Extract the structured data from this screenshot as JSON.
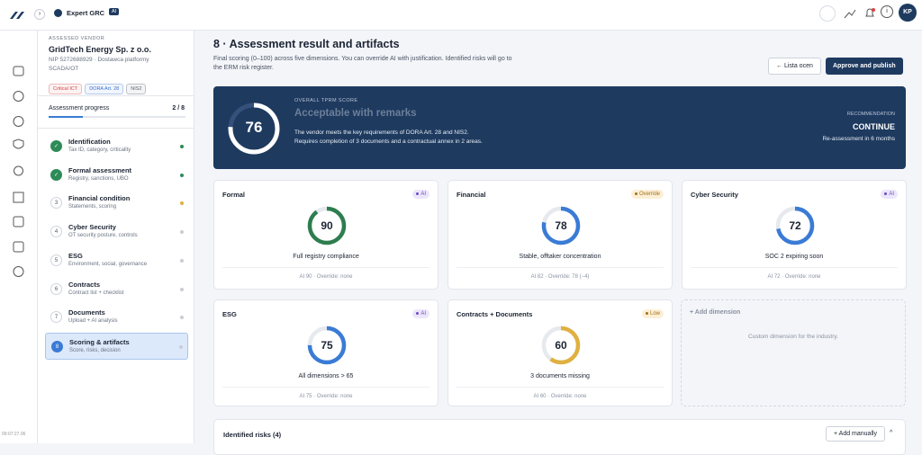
{
  "topbar": {
    "product": "Expert GRC",
    "badge": "AI",
    "avatar": "KP"
  },
  "rail": {
    "clock": "09:07:27.06"
  },
  "vendor": {
    "label": "ASSESSED VENDOR",
    "name": "GridTech Energy Sp. z o.o.",
    "details": "NIP 5272688929 · Dostawca platformy SCADA/OT",
    "tags": [
      {
        "text": "Critical ICT",
        "color": "#d64545"
      },
      {
        "text": "DORA Art. 28",
        "color": "#3b6fd1"
      },
      {
        "text": "NIS2",
        "color": "#555e6e"
      }
    ]
  },
  "progress": {
    "title": "Assessment progress",
    "label": "2 / 8",
    "value": 2,
    "total": 8
  },
  "steps": [
    {
      "title": "Identification",
      "subtitle": "Tax ID, category, criticality",
      "status": "done"
    },
    {
      "title": "Formal assessment",
      "subtitle": "Registry, sanctions, UBO",
      "status": "done"
    },
    {
      "number": "3",
      "title": "Financial condition",
      "subtitle": "Statements, scoring",
      "status": "in-progress"
    },
    {
      "number": "4",
      "title": "Cyber Security",
      "subtitle": "OT security posture, controls",
      "status": "pending"
    },
    {
      "number": "5",
      "title": "ESG",
      "subtitle": "Environment, social, governance",
      "status": "pending"
    },
    {
      "number": "6",
      "title": "Contracts",
      "subtitle": "Contract list + checklist",
      "status": "pending"
    },
    {
      "number": "7",
      "title": "Documents",
      "subtitle": "Upload + AI analysis",
      "status": "pending"
    },
    {
      "number": "8",
      "title": "Scoring & artifacts",
      "subtitle": "Score, risks, decision",
      "status": "active"
    }
  ],
  "header": {
    "title": "8 · Assessment result and artifacts",
    "description": "Final scoring (0–100) across five dimensions. You can override AI with justification. Identified risks will go to the ERM risk register.",
    "back_button": "← Lista ocen",
    "publish_button": "Approve and publish"
  },
  "score_range": [
    0,
    100
  ],
  "overall": {
    "label": "OVERALL TPRM SCORE",
    "score": 76,
    "verdict": "Acceptable with remarks",
    "description": "The vendor meets the key requirements of DORA Art. 28 and NIS2. Requires completion of 3 documents and a contractual annex in 2 areas.",
    "recommendation_label": "RECOMMENDATION",
    "recommendation": "CONTINUE",
    "reassessment": "Re-assessment in 6 months"
  },
  "cards": [
    {
      "title": "Formal",
      "badge": "AI",
      "badge_kind": "ai",
      "score": 90,
      "color": "#2e7d4f",
      "summary": "Full registry compliance",
      "footer": "AI 90 · Override: none"
    },
    {
      "title": "Financial",
      "badge": "Override",
      "badge_kind": "override",
      "score": 78,
      "color": "#3a7bd5",
      "summary": "Stable, offtaker concentration",
      "footer": "AI 82 · Override: 78 (−4)"
    },
    {
      "title": "Cyber Security",
      "badge": "AI",
      "badge_kind": "ai",
      "score": 72,
      "color": "#3a7bd5",
      "summary": "SOC 2 expiring soon",
      "footer": "AI 72 · Override: none"
    },
    {
      "title": "ESG",
      "badge": "AI",
      "badge_kind": "ai",
      "score": 75,
      "color": "#3a7bd5",
      "summary": "All dimensions > 65",
      "footer": "AI 75 · Override: none"
    },
    {
      "title": "Contracts + Documents",
      "badge": "Low",
      "badge_kind": "low",
      "score": 60,
      "color": "#e0b040",
      "summary": "3 documents missing",
      "footer": "AI 60 · Override: none"
    }
  ],
  "add_dimension": {
    "title": "+ Add dimension",
    "description": "Custom dimension for the industry."
  },
  "risks": {
    "title": "Identified risks (4)",
    "add_button": "+ Add manually"
  }
}
